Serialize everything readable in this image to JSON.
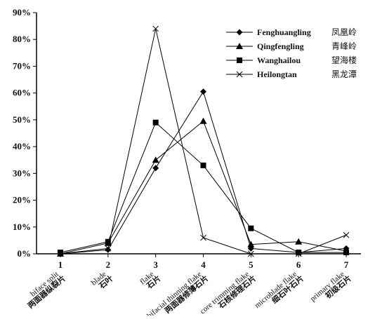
{
  "chart_data": {
    "type": "line",
    "x": [
      1,
      2,
      3,
      4,
      5,
      6,
      7
    ],
    "x_tick_labels": [
      "1",
      "2",
      "3",
      "4",
      "5",
      "6",
      "7"
    ],
    "category_labels": [
      {
        "en": "biface split",
        "cn": "两面器纵裂片"
      },
      {
        "en": "blade",
        "cn": "石叶"
      },
      {
        "en": "flake",
        "cn": "石片"
      },
      {
        "en": "bifacial thinning flake",
        "cn": "两面器修薄石片"
      },
      {
        "en": "core trimming flake",
        "cn": "石核修理石片"
      },
      {
        "en": "microblade flake",
        "cn": "细石叶石片"
      },
      {
        "en": "primary flake",
        "cn": "初级石片"
      }
    ],
    "ylim": [
      0,
      90
    ],
    "y_ticks": [
      0,
      10,
      20,
      30,
      40,
      50,
      60,
      70,
      80,
      90
    ],
    "y_tick_labels": [
      "0%",
      "10%",
      "20%",
      "30%",
      "40%",
      "50%",
      "60%",
      "70%",
      "80%",
      "90%"
    ],
    "grid": false,
    "legend_position": "top-right",
    "series": [
      {
        "name": "Fenghuangling",
        "name_cn": "凤凰岭",
        "marker": "diamond",
        "color": "#000000",
        "values": [
          0,
          1.5,
          32,
          60.5,
          2,
          0.5,
          2
        ]
      },
      {
        "name": "Qingfengling",
        "name_cn": "青峰岭",
        "marker": "triangle",
        "color": "#000000",
        "values": [
          0,
          4,
          35,
          49.5,
          3.5,
          4.5,
          1
        ]
      },
      {
        "name": "Wanghailou",
        "name_cn": "望海楼",
        "marker": "square",
        "color": "#000000",
        "values": [
          0.5,
          4.5,
          49,
          33,
          9.5,
          0.5,
          0.5
        ]
      },
      {
        "name": "Heilongtan",
        "name_cn": "黑龙潭",
        "marker": "x",
        "color": "#000000",
        "values": [
          0,
          2,
          84,
          6,
          0,
          0,
          7
        ]
      }
    ]
  }
}
